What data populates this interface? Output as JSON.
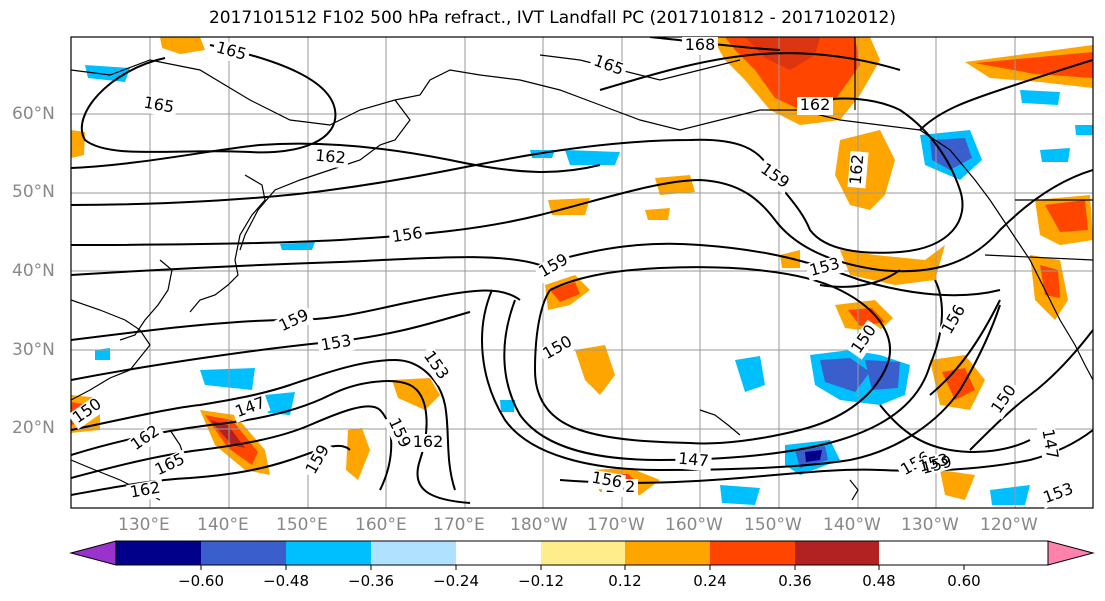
{
  "title": "2017101512 F102 500 hPa refract., IVT Landfall PC (2017101812 - 2017102012)",
  "lat_labels": [
    "60°N",
    "50°N",
    "40°N",
    "30°N",
    "20°N"
  ],
  "lon_labels": [
    "130°E",
    "140°E",
    "150°E",
    "160°E",
    "170°E",
    "180°W",
    "170°W",
    "160°W",
    "150°W",
    "140°W",
    "130°W",
    "120°W"
  ],
  "contour_labels": [
    "168",
    "165",
    "165",
    "165",
    "162",
    "162",
    "162",
    "162",
    "162",
    "162",
    "159",
    "159",
    "159",
    "159",
    "159",
    "156",
    "156",
    "156",
    "156",
    "153",
    "153",
    "153",
    "153",
    "153",
    "150",
    "150",
    "150",
    "150",
    "147",
    "147",
    "147",
    "165",
    "162",
    "159"
  ],
  "colorbar": {
    "colors": [
      "#9a32cd",
      "#00008b",
      "#3a5fcd",
      "#00bfff",
      "#b0e2ff",
      "#ffffff",
      "#ffec8b",
      "#ffa500",
      "#ff4500",
      "#b22222",
      "#ff82ab"
    ],
    "tick_labels": [
      "−0.60",
      "−0.48",
      "−0.36",
      "−0.24",
      "−0.12",
      "0.12",
      "0.24",
      "0.36",
      "0.48",
      "0.60"
    ]
  }
}
